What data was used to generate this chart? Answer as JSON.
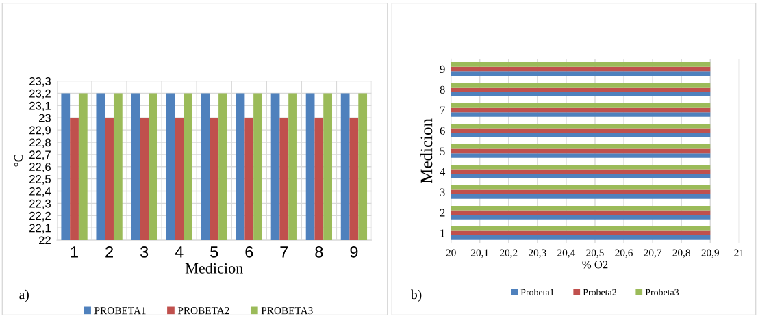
{
  "chart_data": [
    {
      "type": "bar",
      "categories": [
        "1",
        "2",
        "3",
        "4",
        "5",
        "6",
        "7",
        "8",
        "9"
      ],
      "xlabel": "Medicion",
      "ylabel": "°C",
      "series": [
        {
          "name": "PROBETA1",
          "color": "#4f81bd",
          "values": [
            23.2,
            23.2,
            23.2,
            23.2,
            23.2,
            23.2,
            23.2,
            23.2,
            23.2
          ]
        },
        {
          "name": "PROBETA2",
          "color": "#c0504d",
          "values": [
            23.0,
            23.0,
            23.0,
            23.0,
            23.0,
            23.0,
            23.0,
            23.0,
            23.0
          ]
        },
        {
          "name": "PROBETA3",
          "color": "#9bbb59",
          "values": [
            23.2,
            23.2,
            23.2,
            23.2,
            23.2,
            23.2,
            23.2,
            23.2,
            23.2
          ]
        }
      ],
      "ylim": [
        22,
        23.3
      ],
      "yticks": [
        {
          "value": 22,
          "label": "22"
        },
        {
          "value": 22.1,
          "label": "22,1"
        },
        {
          "value": 22.2,
          "label": "22,2"
        },
        {
          "value": 22.3,
          "label": "22,3"
        },
        {
          "value": 22.4,
          "label": "22,4"
        },
        {
          "value": 22.5,
          "label": "22,5"
        },
        {
          "value": 22.6,
          "label": "22,6"
        },
        {
          "value": 22.7,
          "label": "22,7"
        },
        {
          "value": 22.8,
          "label": "22,8"
        },
        {
          "value": 22.9,
          "label": "22,9"
        },
        {
          "value": 23,
          "label": "23"
        },
        {
          "value": 23.1,
          "label": "23,1"
        },
        {
          "value": 23.2,
          "label": "23,2"
        },
        {
          "value": 23.3,
          "label": "23,3"
        }
      ],
      "grid": true,
      "legend": "bottom",
      "annotations": [
        "a)"
      ]
    },
    {
      "type": "bar",
      "orientation": "horizontal",
      "categories": [
        "9",
        "8",
        "7",
        "6",
        "5",
        "4",
        "3",
        "2",
        "1"
      ],
      "xlabel": "% O2",
      "ylabel": "Medicion",
      "series": [
        {
          "name": "Probeta1",
          "color": "#4f81bd",
          "values": [
            20.9,
            20.9,
            20.9,
            20.9,
            20.9,
            20.9,
            20.9,
            20.9,
            20.9
          ]
        },
        {
          "name": "Probeta2",
          "color": "#c0504d",
          "values": [
            20.9,
            20.9,
            20.9,
            20.9,
            20.9,
            20.9,
            20.9,
            20.9,
            20.9
          ]
        },
        {
          "name": "Probeta3",
          "color": "#9bbb59",
          "values": [
            20.9,
            20.9,
            20.9,
            20.9,
            20.9,
            20.9,
            20.9,
            20.9,
            20.9
          ]
        }
      ],
      "xlim": [
        20,
        21
      ],
      "xticks": [
        {
          "value": 20,
          "label": "20"
        },
        {
          "value": 20.1,
          "label": "20,1"
        },
        {
          "value": 20.2,
          "label": "20,2"
        },
        {
          "value": 20.3,
          "label": "20,3"
        },
        {
          "value": 20.4,
          "label": "20,4"
        },
        {
          "value": 20.5,
          "label": "20,5"
        },
        {
          "value": 20.6,
          "label": "20,6"
        },
        {
          "value": 20.7,
          "label": "20,7"
        },
        {
          "value": 20.8,
          "label": "20,8"
        },
        {
          "value": 20.9,
          "label": "20,9"
        },
        {
          "value": 21,
          "label": "21"
        }
      ],
      "grid": "x",
      "legend": "bottom",
      "annotations": [
        "b)"
      ]
    }
  ]
}
